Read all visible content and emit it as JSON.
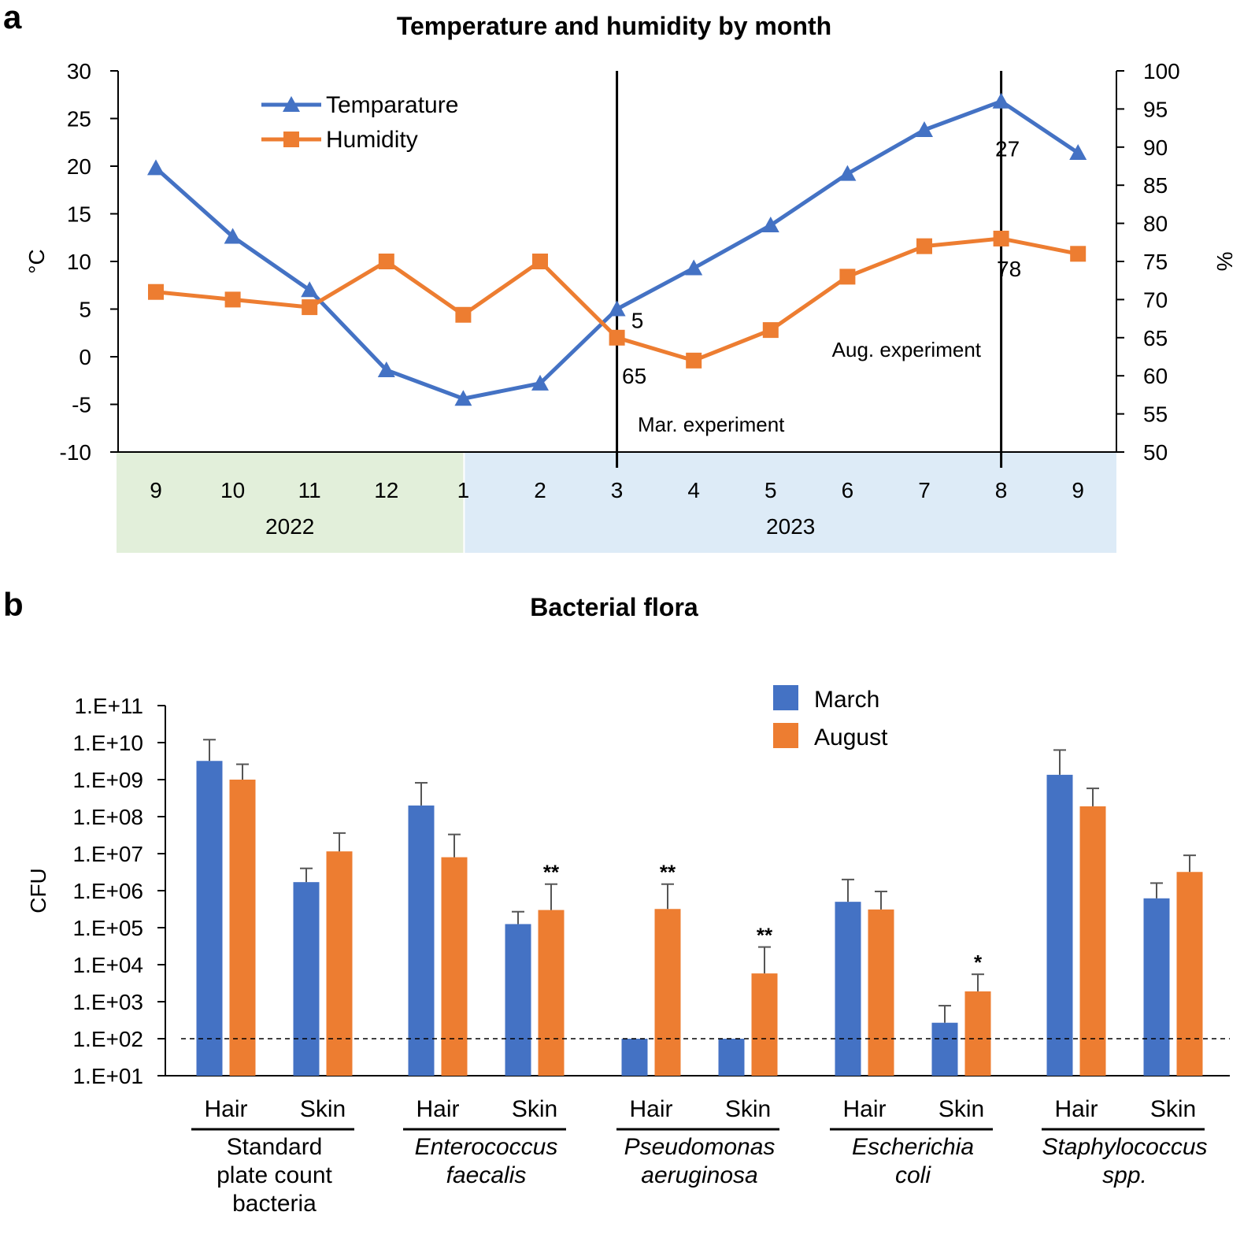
{
  "chart_data": [
    {
      "panel": "a",
      "type": "line",
      "title": "Temperature and humidity by month",
      "ylabel": "°C",
      "y2label": "%",
      "ylim": [
        -10,
        30
      ],
      "y_ticks": [
        "30",
        "25",
        "20",
        "15",
        "10",
        "5",
        "0",
        "-5",
        "-10"
      ],
      "y2lim": [
        50,
        100
      ],
      "y2_ticks": [
        "100",
        "95",
        "90",
        "85",
        "80",
        "75",
        "70",
        "65",
        "60",
        "55",
        "50"
      ],
      "categories": [
        "9",
        "10",
        "11",
        "12",
        "1",
        "2",
        "3",
        "4",
        "5",
        "6",
        "7",
        "8",
        "9"
      ],
      "years": [
        {
          "label": "2022",
          "span": [
            0,
            4
          ],
          "color": "#e2efda"
        },
        {
          "label": "2023",
          "span": [
            4,
            12
          ],
          "color": "#ddebf7"
        }
      ],
      "series": [
        {
          "name": "Temparature",
          "axis": "left",
          "color": "#4472c4",
          "marker": "triangle",
          "values": [
            19.8,
            12.6,
            7.0,
            -1.4,
            -4.4,
            -2.8,
            5.0,
            9.3,
            13.8,
            19.2,
            23.8,
            26.8,
            21.4
          ]
        },
        {
          "name": "Humidity",
          "axis": "right",
          "color": "#ed7d31",
          "marker": "square",
          "values": [
            71,
            70,
            69,
            75,
            68,
            75,
            65,
            62,
            66,
            73,
            77,
            78,
            76
          ]
        }
      ],
      "vlines": [
        {
          "index": 6,
          "label": "Mar. experiment"
        },
        {
          "index": 11,
          "label": "Aug. experiment"
        }
      ],
      "data_labels": [
        {
          "series": 0,
          "index": 6,
          "text": "5"
        },
        {
          "series": 1,
          "index": 6,
          "text": "65"
        },
        {
          "series": 0,
          "index": 11,
          "text": "27"
        },
        {
          "series": 1,
          "index": 11,
          "text": "78"
        }
      ]
    },
    {
      "panel": "b",
      "type": "bar",
      "title": "Bacterial flora",
      "ylabel": "CFU",
      "yscale": "log",
      "ylim": [
        10,
        100000000000
      ],
      "y_ticks": [
        "1.E+11",
        "1.E+10",
        "1.E+09",
        "1.E+08",
        "1.E+07",
        "1.E+06",
        "1.E+05",
        "1.E+04",
        "1.E+03",
        "1.E+02",
        "1.E+01"
      ],
      "detection_limit": 100,
      "subcategories": [
        "Hair",
        "Skin",
        "Hair",
        "Skin",
        "Hair",
        "Skin",
        "Hair",
        "Skin",
        "Hair",
        "Skin"
      ],
      "groups": [
        {
          "lines": [
            "Standard",
            "plate count",
            "bacteria"
          ],
          "italic": false
        },
        {
          "lines": [
            "Enterococcus",
            "faecalis"
          ],
          "italic": true
        },
        {
          "lines": [
            "Pseudomonas",
            "aeruginosa"
          ],
          "italic": true
        },
        {
          "lines": [
            "Escherichia",
            "coli"
          ],
          "italic": true
        },
        {
          "lines": [
            "Staphylococcus",
            "spp."
          ],
          "italic": true
        }
      ],
      "series": [
        {
          "name": "March",
          "color": "#4472c4",
          "values": [
            3200000000,
            1700000,
            200000000,
            125000,
            100,
            100,
            500000,
            270,
            1350000000,
            620000
          ],
          "errors": [
            12000000000,
            4000000,
            820000000,
            270000,
            100,
            100,
            2000000,
            780,
            6300000000,
            1600000
          ]
        },
        {
          "name": "August",
          "color": "#ed7d31",
          "values": [
            1000000000,
            11500000,
            8000000,
            300000,
            320000,
            5800,
            310000,
            1900,
            190000000,
            3200000
          ],
          "errors": [
            2600000000,
            36000000,
            33000000,
            1500000,
            1500000,
            30000,
            950000,
            5500,
            580000000,
            9000000
          ]
        }
      ],
      "significance": [
        {
          "index": 3,
          "series": 1,
          "text": "**"
        },
        {
          "index": 4,
          "series": 1,
          "text": "**"
        },
        {
          "index": 5,
          "series": 1,
          "text": "**"
        },
        {
          "index": 7,
          "series": 1,
          "text": "*"
        }
      ]
    }
  ]
}
